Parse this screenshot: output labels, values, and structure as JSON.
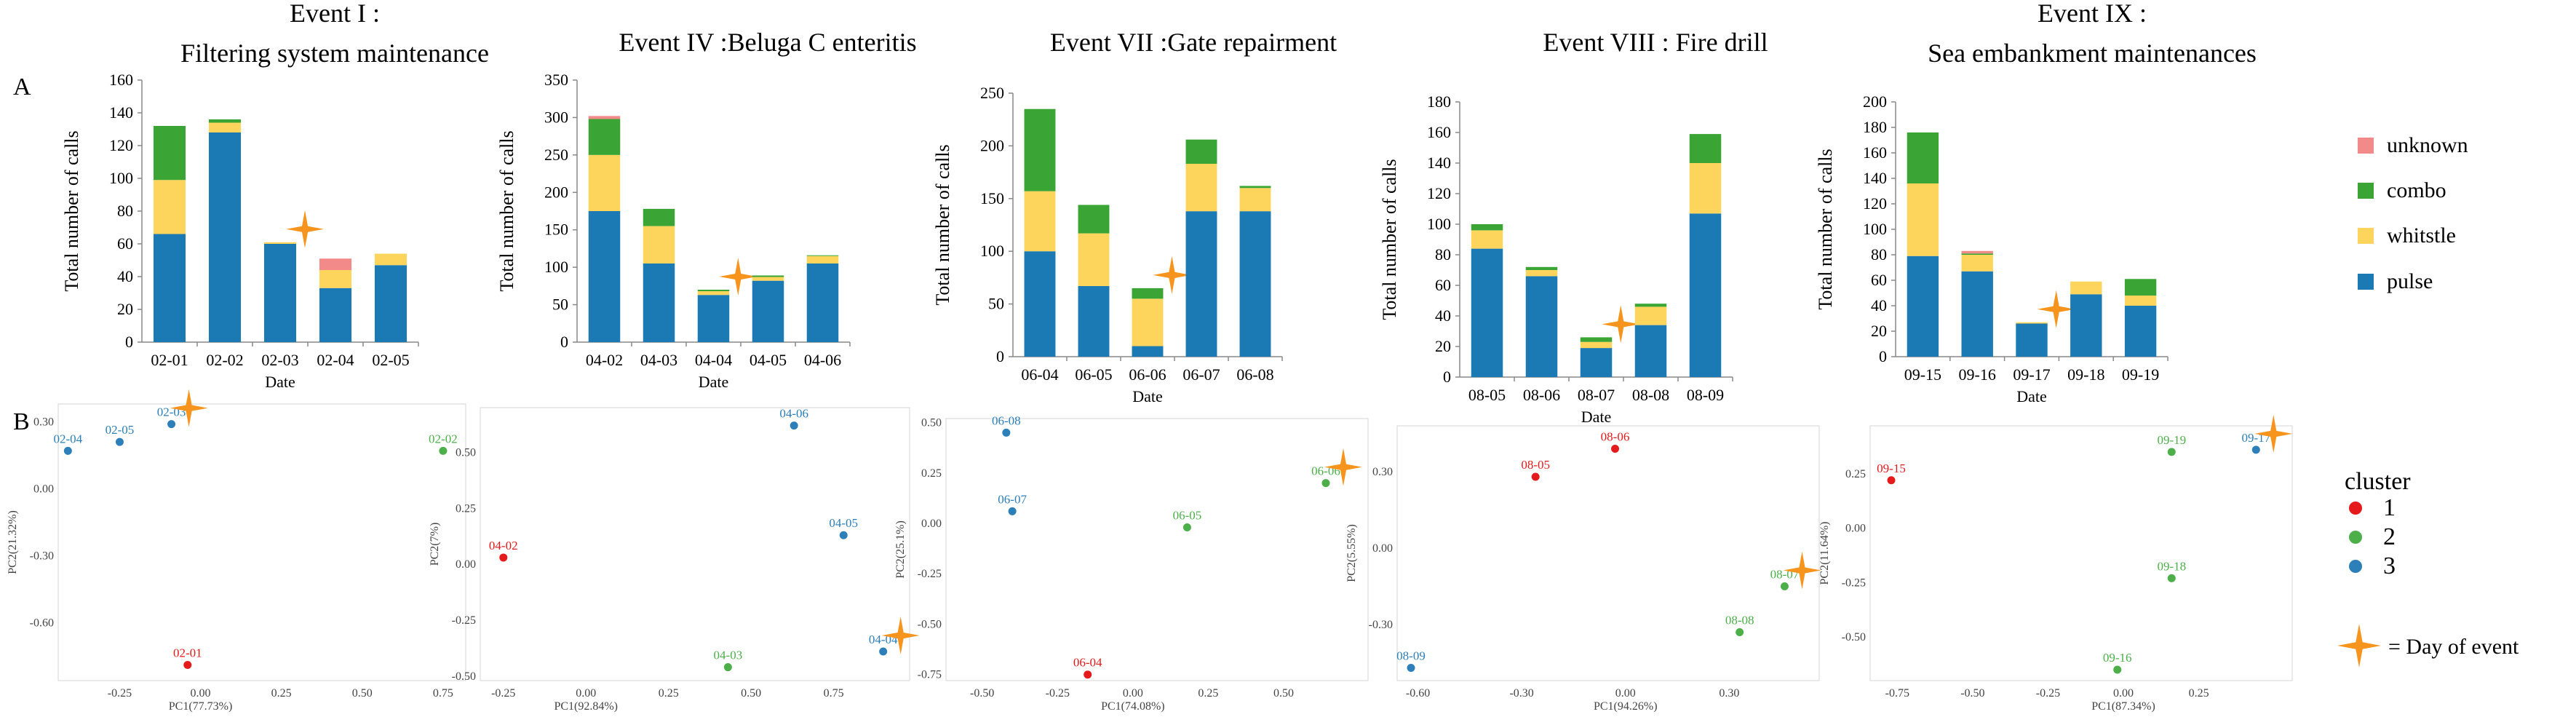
{
  "panel_labels": {
    "a": "A",
    "b": "B"
  },
  "colors": {
    "pulse": "#1b7ab3",
    "whistle": "#fdd55c",
    "combo": "#3aa535",
    "unknown": "#f28a8a",
    "star": "#f7941d",
    "cluster1": "#e41a1c",
    "cluster2": "#4daf4a",
    "cluster3": "#2c7fb8"
  },
  "legend": {
    "stack_items": [
      "unknown",
      "combo",
      "whitstle",
      "pulse"
    ],
    "cluster_title": "cluster",
    "cluster_items": [
      "1",
      "2",
      "3"
    ],
    "star_label": "= Day of event"
  },
  "chart_data": [
    {
      "type": "bar",
      "stacked": true,
      "title": "Event I :\nFiltering system maintenance",
      "xlabel": "Date",
      "ylabel": "Total number of calls",
      "ylim": [
        0,
        160
      ],
      "yticks": [
        0,
        20,
        40,
        60,
        80,
        100,
        120,
        140,
        160
      ],
      "categories": [
        "02-01",
        "02-02",
        "02-03",
        "02-04",
        "02-05"
      ],
      "series": [
        {
          "name": "pulse",
          "values": [
            66,
            128,
            60,
            33,
            47
          ]
        },
        {
          "name": "whitstle",
          "values": [
            33,
            6,
            1,
            11,
            7
          ]
        },
        {
          "name": "combo",
          "values": [
            33,
            2,
            0,
            0,
            0
          ]
        },
        {
          "name": "unknown",
          "values": [
            0,
            0,
            0,
            7,
            0
          ]
        }
      ],
      "event_day": "02-03"
    },
    {
      "type": "bar",
      "stacked": true,
      "title": "Event IV :Beluga C enteritis",
      "xlabel": "Date",
      "ylabel": "Total number of calls",
      "ylim": [
        0,
        350
      ],
      "yticks": [
        0,
        50,
        100,
        150,
        200,
        250,
        300,
        350
      ],
      "categories": [
        "04-02",
        "04-03",
        "04-04",
        "04-05",
        "04-06"
      ],
      "series": [
        {
          "name": "pulse",
          "values": [
            175,
            105,
            63,
            82,
            105
          ]
        },
        {
          "name": "whitstle",
          "values": [
            75,
            50,
            5,
            5,
            10
          ]
        },
        {
          "name": "combo",
          "values": [
            48,
            23,
            2,
            2,
            1
          ]
        },
        {
          "name": "unknown",
          "values": [
            4,
            0,
            0,
            0,
            0
          ]
        }
      ],
      "event_day": "04-04"
    },
    {
      "type": "bar",
      "stacked": true,
      "title": "Event VII :Gate repairment",
      "xlabel": "Date",
      "ylabel": "Total number of calls",
      "ylim": [
        0,
        250
      ],
      "yticks": [
        0,
        50,
        100,
        150,
        200,
        250
      ],
      "categories": [
        "06-04",
        "06-05",
        "06-06",
        "06-07",
        "06-08"
      ],
      "series": [
        {
          "name": "pulse",
          "values": [
            100,
            67,
            10,
            138,
            138
          ]
        },
        {
          "name": "whitstle",
          "values": [
            57,
            50,
            45,
            45,
            22
          ]
        },
        {
          "name": "combo",
          "values": [
            78,
            27,
            10,
            23,
            2
          ]
        },
        {
          "name": "unknown",
          "values": [
            0,
            0,
            0,
            0,
            0
          ]
        }
      ],
      "event_day": "06-06"
    },
    {
      "type": "bar",
      "stacked": true,
      "title": "Event VIII : Fire drill",
      "xlabel": "Date",
      "ylabel": "Total number of calls",
      "ylim": [
        0,
        180
      ],
      "yticks": [
        0,
        20,
        40,
        60,
        80,
        100,
        120,
        140,
        160,
        180
      ],
      "categories": [
        "08-05",
        "08-06",
        "08-07",
        "08-08",
        "08-09"
      ],
      "series": [
        {
          "name": "pulse",
          "values": [
            84,
            66,
            19,
            34,
            107
          ]
        },
        {
          "name": "whitstle",
          "values": [
            12,
            4,
            4,
            12,
            33
          ]
        },
        {
          "name": "combo",
          "values": [
            4,
            2,
            3,
            2,
            19
          ]
        },
        {
          "name": "unknown",
          "values": [
            0,
            0,
            0,
            0,
            0
          ]
        }
      ],
      "event_day": "08-07"
    },
    {
      "type": "bar",
      "stacked": true,
      "title": "Event IX :\nSea embankment maintenances",
      "xlabel": "Date",
      "ylabel": "Total number of calls",
      "ylim": [
        0,
        200
      ],
      "yticks": [
        0,
        20,
        40,
        60,
        80,
        100,
        120,
        140,
        160,
        180,
        200
      ],
      "categories": [
        "09-15",
        "09-16",
        "09-17",
        "09-18",
        "09-19"
      ],
      "series": [
        {
          "name": "pulse",
          "values": [
            79,
            67,
            26,
            49,
            40
          ]
        },
        {
          "name": "whitstle",
          "values": [
            57,
            13,
            1,
            10,
            8
          ]
        },
        {
          "name": "combo",
          "values": [
            40,
            1,
            0,
            0,
            13
          ]
        },
        {
          "name": "unknown",
          "values": [
            0,
            2,
            0,
            0,
            0
          ]
        }
      ],
      "event_day": "09-17"
    },
    {
      "type": "scatter",
      "xlabel": "PC1(77.73%)",
      "ylabel": "PC2(21.32%)",
      "xlim": [
        -0.44,
        0.82
      ],
      "ylim": [
        -0.86,
        0.38
      ],
      "xticks": [
        "-0.25",
        "0.00",
        "0.25",
        "0.50",
        "0.75"
      ],
      "yticks": [
        "0.30",
        "0.00",
        "-0.30",
        "-0.60"
      ],
      "points": [
        {
          "label": "02-01",
          "x": -0.04,
          "y": -0.79,
          "cluster": 1
        },
        {
          "label": "02-02",
          "x": 0.75,
          "y": 0.17,
          "cluster": 2
        },
        {
          "label": "02-03",
          "x": -0.09,
          "y": 0.29,
          "cluster": 3
        },
        {
          "label": "02-04",
          "x": -0.41,
          "y": 0.17,
          "cluster": 3
        },
        {
          "label": "02-05",
          "x": -0.25,
          "y": 0.21,
          "cluster": 3
        }
      ],
      "event_day": "02-03"
    },
    {
      "type": "scatter",
      "xlabel": "PC1(92.84%)",
      "ylabel": "PC2(7%)",
      "xlim": [
        -0.32,
        0.98
      ],
      "ylim": [
        -0.52,
        0.7
      ],
      "xticks": [
        "-0.25",
        "0.00",
        "0.25",
        "0.50",
        "0.75"
      ],
      "yticks": [
        "0.50",
        "0.25",
        "0.00",
        "-0.25",
        "-0.50"
      ],
      "points": [
        {
          "label": "04-02",
          "x": -0.25,
          "y": 0.03,
          "cluster": 1
        },
        {
          "label": "04-03",
          "x": 0.43,
          "y": -0.46,
          "cluster": 2
        },
        {
          "label": "04-04",
          "x": 0.9,
          "y": -0.39,
          "cluster": 3
        },
        {
          "label": "04-05",
          "x": 0.78,
          "y": 0.13,
          "cluster": 3
        },
        {
          "label": "04-06",
          "x": 0.63,
          "y": 0.62,
          "cluster": 3
        }
      ],
      "event_day": "04-04"
    },
    {
      "type": "scatter",
      "xlabel": "PC1(74.08%)",
      "ylabel": "PC2(25.1%)",
      "xlim": [
        -0.62,
        0.78
      ],
      "ylim": [
        -0.78,
        0.52
      ],
      "xticks": [
        "-0.50",
        "-0.25",
        "0.00",
        "0.25",
        "0.50"
      ],
      "yticks": [
        "0.50",
        "0.25",
        "0.00",
        "-0.25",
        "-0.50",
        "-0.75"
      ],
      "points": [
        {
          "label": "06-04",
          "x": -0.15,
          "y": -0.75,
          "cluster": 1
        },
        {
          "label": "06-05",
          "x": 0.18,
          "y": -0.02,
          "cluster": 2
        },
        {
          "label": "06-06",
          "x": 0.64,
          "y": 0.2,
          "cluster": 2
        },
        {
          "label": "06-07",
          "x": -0.4,
          "y": 0.06,
          "cluster": 3
        },
        {
          "label": "06-08",
          "x": -0.42,
          "y": 0.45,
          "cluster": 3
        }
      ],
      "event_day": "06-06"
    },
    {
      "type": "scatter",
      "xlabel": "PC1(94.26%)",
      "ylabel": "PC2(5.55%)",
      "xlim": [
        -0.66,
        0.56
      ],
      "ylim": [
        -0.52,
        0.48
      ],
      "xticks": [
        "-0.60",
        "-0.30",
        "0.00",
        "0.30"
      ],
      "yticks": [
        "0.30",
        "0.00",
        "-0.30"
      ],
      "points": [
        {
          "label": "08-05",
          "x": -0.26,
          "y": 0.28,
          "cluster": 1
        },
        {
          "label": "08-06",
          "x": -0.03,
          "y": 0.39,
          "cluster": 1
        },
        {
          "label": "08-07",
          "x": 0.46,
          "y": -0.15,
          "cluster": 2
        },
        {
          "label": "08-08",
          "x": 0.33,
          "y": -0.33,
          "cluster": 2
        },
        {
          "label": "08-09",
          "x": -0.62,
          "y": -0.47,
          "cluster": 3
        }
      ],
      "event_day": "08-07"
    },
    {
      "type": "scatter",
      "xlabel": "PC1(87.34%)",
      "ylabel": "PC2(11.64%)",
      "xlim": [
        -0.84,
        0.56
      ],
      "ylim": [
        -0.7,
        0.47
      ],
      "xticks": [
        "-0.75",
        "-0.50",
        "-0.25",
        "0.00",
        "0.25"
      ],
      "yticks": [
        "0.25",
        "0.00",
        "-0.25",
        "-0.50"
      ],
      "points": [
        {
          "label": "09-15",
          "x": -0.77,
          "y": 0.22,
          "cluster": 1
        },
        {
          "label": "09-16",
          "x": -0.02,
          "y": -0.65,
          "cluster": 2
        },
        {
          "label": "09-17",
          "x": 0.44,
          "y": 0.36,
          "cluster": 3
        },
        {
          "label": "09-18",
          "x": 0.16,
          "y": -0.23,
          "cluster": 2
        },
        {
          "label": "09-19",
          "x": 0.16,
          "y": 0.35,
          "cluster": 2
        }
      ],
      "event_day": "09-17"
    }
  ]
}
